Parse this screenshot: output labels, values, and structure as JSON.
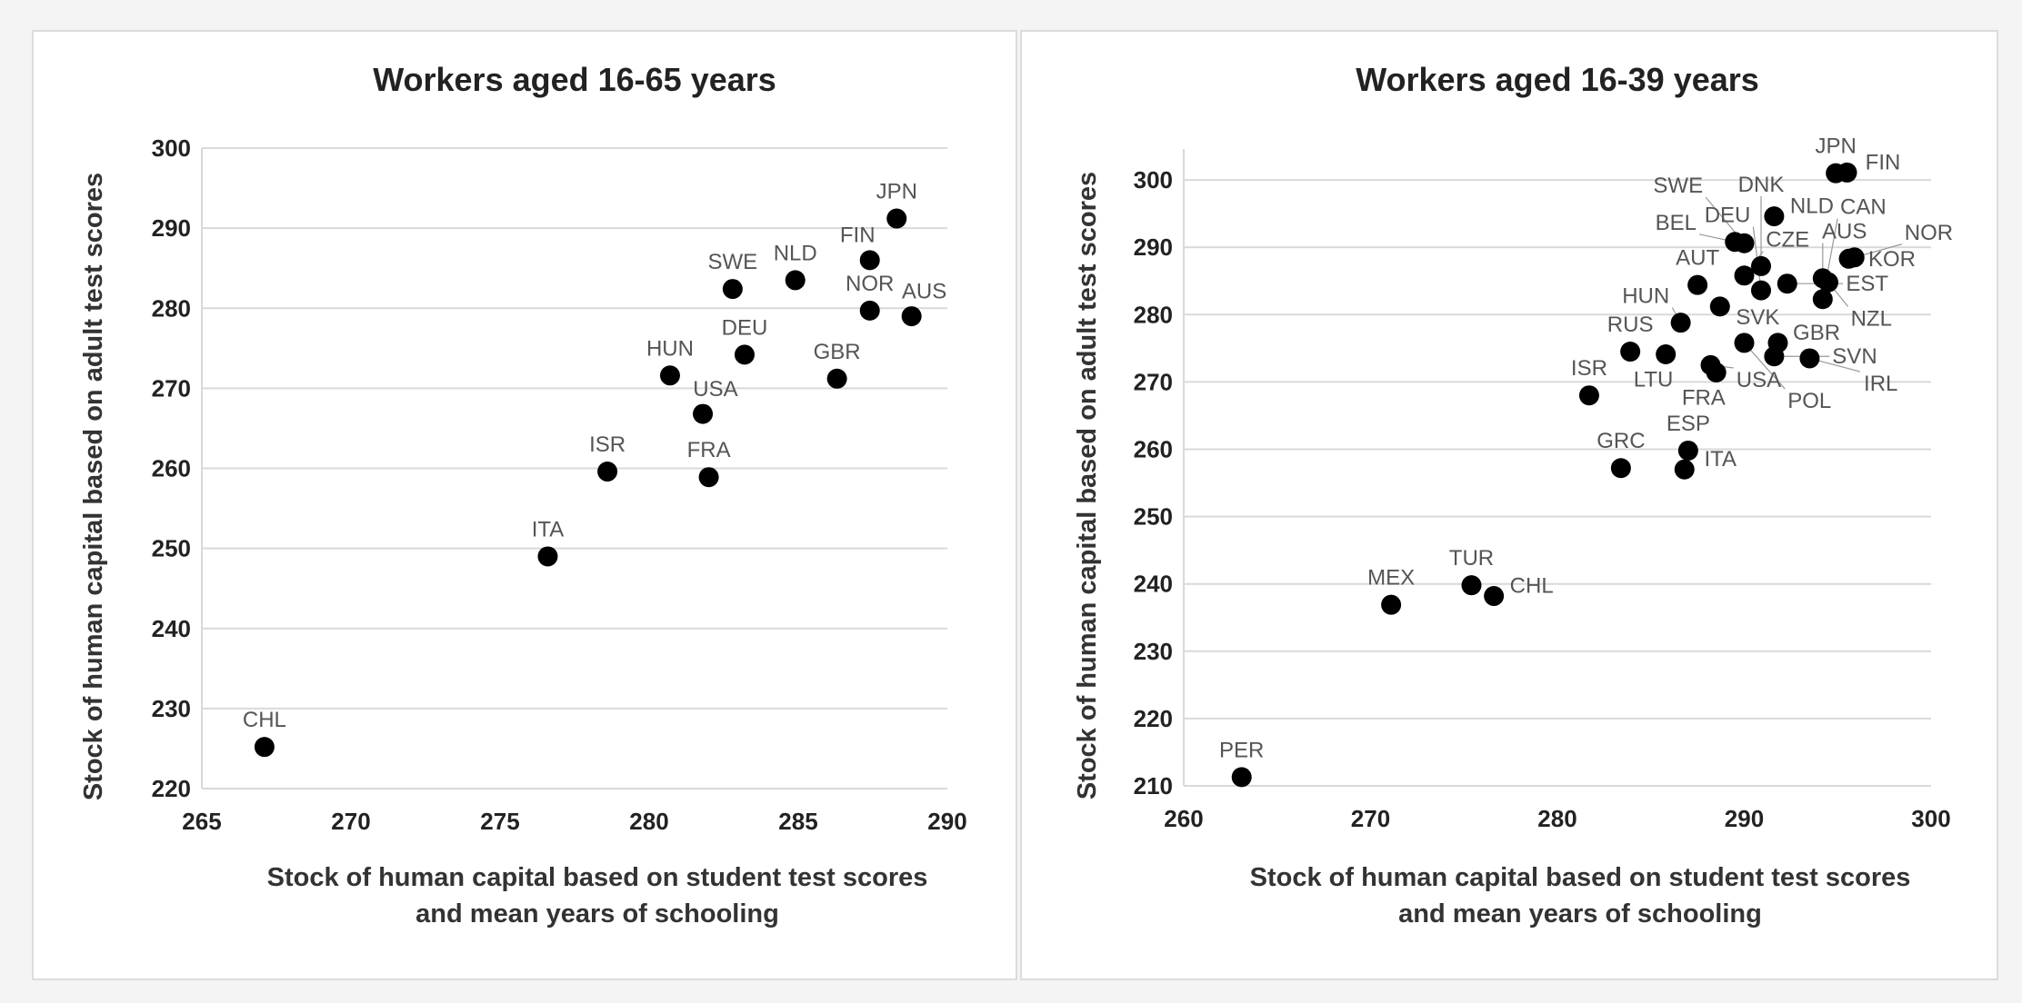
{
  "chart_data": [
    {
      "type": "scatter",
      "title": "Workers aged 16-65 years",
      "xlabel": [
        "Stock of human capital based on student test scores",
        "and mean years of schooling"
      ],
      "ylabel": "Stock of human capital based on adult test scores",
      "xlim": [
        265,
        290
      ],
      "ylim": [
        220,
        300
      ],
      "xticks": [
        265,
        270,
        275,
        280,
        285,
        290
      ],
      "yticks": [
        220,
        230,
        240,
        250,
        260,
        270,
        280,
        290,
        300
      ],
      "grid": "horizontal",
      "points": [
        {
          "label": "CHL",
          "x": 267.1,
          "y": 225.2
        },
        {
          "label": "ITA",
          "x": 276.6,
          "y": 249.0
        },
        {
          "label": "ISR",
          "x": 278.6,
          "y": 259.6
        },
        {
          "label": "FRA",
          "x": 282.0,
          "y": 258.9
        },
        {
          "label": "USA",
          "x": 281.8,
          "y": 266.8
        },
        {
          "label": "HUN",
          "x": 280.7,
          "y": 271.6
        },
        {
          "label": "DEU",
          "x": 283.2,
          "y": 274.2
        },
        {
          "label": "SWE",
          "x": 282.8,
          "y": 282.4
        },
        {
          "label": "NLD",
          "x": 284.9,
          "y": 283.5
        },
        {
          "label": "GBR",
          "x": 286.3,
          "y": 271.2
        },
        {
          "label": "FIN",
          "x": 287.4,
          "y": 286.0
        },
        {
          "label": "NOR",
          "x": 287.4,
          "y": 279.7
        },
        {
          "label": "AUS",
          "x": 288.8,
          "y": 279.0
        },
        {
          "label": "JPN",
          "x": 288.3,
          "y": 291.2
        }
      ]
    },
    {
      "type": "scatter",
      "title": "Workers aged 16-39 years",
      "xlabel": [
        "Stock of human capital based on student test scores",
        "and mean years of schooling"
      ],
      "ylabel": "Stock of human capital based on adult test scores",
      "xlim": [
        260,
        300
      ],
      "ylim": [
        210,
        304.6
      ],
      "xticks": [
        260,
        270,
        280,
        290,
        300
      ],
      "yticks": [
        210,
        220,
        230,
        240,
        250,
        260,
        270,
        280,
        290,
        300
      ],
      "grid": "horizontal",
      "points": [
        {
          "label": "PER",
          "x": 263.1,
          "y": 211.3
        },
        {
          "label": "MEX",
          "x": 271.1,
          "y": 236.9
        },
        {
          "label": "TUR",
          "x": 275.4,
          "y": 239.8
        },
        {
          "label": "CHL",
          "x": 276.6,
          "y": 238.2
        },
        {
          "label": "ISR",
          "x": 281.7,
          "y": 268.0
        },
        {
          "label": "GRC",
          "x": 283.4,
          "y": 257.2
        },
        {
          "label": "ESP",
          "x": 287.0,
          "y": 259.8
        },
        {
          "label": "ITA",
          "x": 286.8,
          "y": 257.0
        },
        {
          "label": "RUS",
          "x": 283.9,
          "y": 274.5
        },
        {
          "label": "LTU",
          "x": 285.8,
          "y": 274.1
        },
        {
          "label": "USA",
          "x": 288.2,
          "y": 272.5
        },
        {
          "label": "FRA",
          "x": 288.5,
          "y": 271.4
        },
        {
          "label": "HUN",
          "x": 286.6,
          "y": 278.8
        },
        {
          "label": "SVK",
          "x": 288.7,
          "y": 281.2
        },
        {
          "label": "AUT",
          "x": 287.5,
          "y": 284.4
        },
        {
          "label": "POL",
          "x": 290.0,
          "y": 275.8
        },
        {
          "label": "GBR",
          "x": 291.8,
          "y": 275.8
        },
        {
          "label": "SVN",
          "x": 291.6,
          "y": 273.8
        },
        {
          "label": "IRL",
          "x": 293.5,
          "y": 273.5
        },
        {
          "label": "CZE",
          "x": 290.0,
          "y": 285.8
        },
        {
          "label": "DEU",
          "x": 290.9,
          "y": 283.6
        },
        {
          "label": "DNK",
          "x": 290.9,
          "y": 287.2
        },
        {
          "label": "EST",
          "x": 292.3,
          "y": 284.6
        },
        {
          "label": "BEL",
          "x": 289.5,
          "y": 290.8
        },
        {
          "label": "SWE",
          "x": 290.0,
          "y": 290.6
        },
        {
          "label": "NLD",
          "x": 291.6,
          "y": 294.6
        },
        {
          "label": "AUS",
          "x": 294.2,
          "y": 285.4
        },
        {
          "label": "NZL",
          "x": 294.5,
          "y": 284.8
        },
        {
          "label": "CAN",
          "x": 294.2,
          "y": 282.3
        },
        {
          "label": "KOR",
          "x": 295.6,
          "y": 288.3
        },
        {
          "label": "NOR",
          "x": 295.9,
          "y": 288.5
        },
        {
          "label": "JPN",
          "x": 294.9,
          "y": 301.0
        },
        {
          "label": "FIN",
          "x": 295.5,
          "y": 301.1
        }
      ]
    }
  ]
}
